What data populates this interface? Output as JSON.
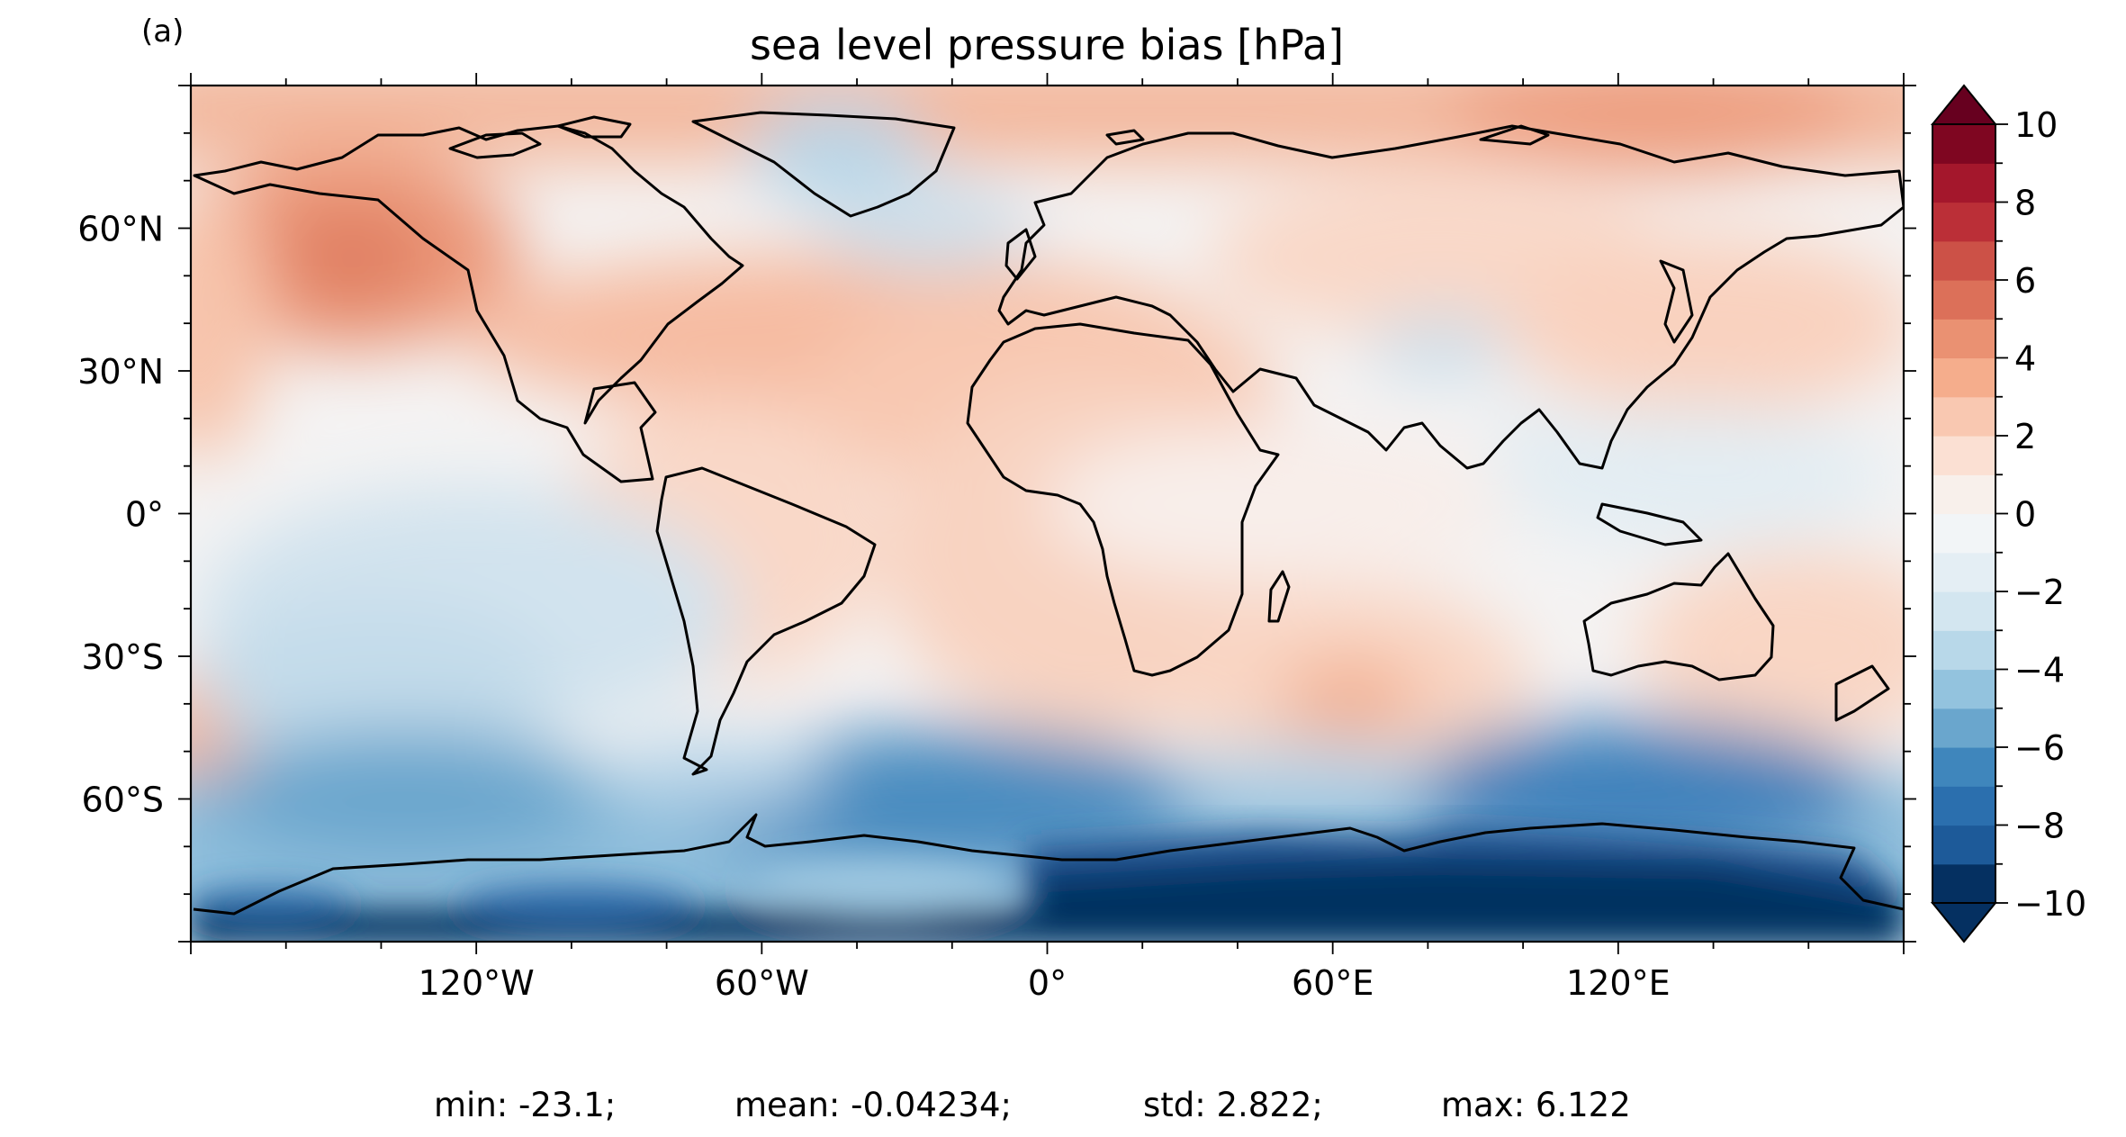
{
  "panel_label": "(a)",
  "chart_data": {
    "type": "heatmap",
    "projection": "PlateCarree",
    "title": "sea level pressure bias [hPa]",
    "xlim": [
      -180,
      180
    ],
    "ylim": [
      -90,
      90
    ],
    "x_ticks": [
      -120,
      -60,
      0,
      60,
      120
    ],
    "x_tick_labels": [
      "120°W",
      "60°W",
      "0°",
      "60°E",
      "120°E"
    ],
    "y_ticks": [
      60,
      30,
      0,
      -30,
      -60
    ],
    "y_tick_labels": [
      "60°N",
      "30°N",
      "0°",
      "30°S",
      "60°S"
    ],
    "colorbar": {
      "min": -10,
      "max": 10,
      "step": 1,
      "extend": "both",
      "ticks": [
        10,
        8,
        6,
        4,
        2,
        0,
        -2,
        -4,
        -6,
        -8,
        -10
      ],
      "tick_labels": [
        "10",
        "8",
        "6",
        "4",
        "2",
        "0",
        "−2",
        "−4",
        "−6",
        "−8",
        "−10"
      ],
      "colormap": "RdBu_r",
      "colors": [
        "#053061",
        "#1d5a99",
        "#2b6fae",
        "#3f86bc",
        "#6aa6cd",
        "#93c3de",
        "#b8d8e9",
        "#d3e6f0",
        "#e4eef4",
        "#f2f5f7",
        "#f8f0eb",
        "#fbe0d3",
        "#f9c8b1",
        "#f5ad8c",
        "#ea9172",
        "#dc7059",
        "#cc5147",
        "#bb2f37",
        "#a4172c",
        "#7f0621"
      ],
      "under_color": "#053061",
      "over_color": "#67001f"
    },
    "statistics": {
      "min_label": "min: -23.1;",
      "mean_label": "mean: -0.04234;",
      "std_label": "std: 2.822;",
      "max_label": "max: 6.122"
    }
  }
}
